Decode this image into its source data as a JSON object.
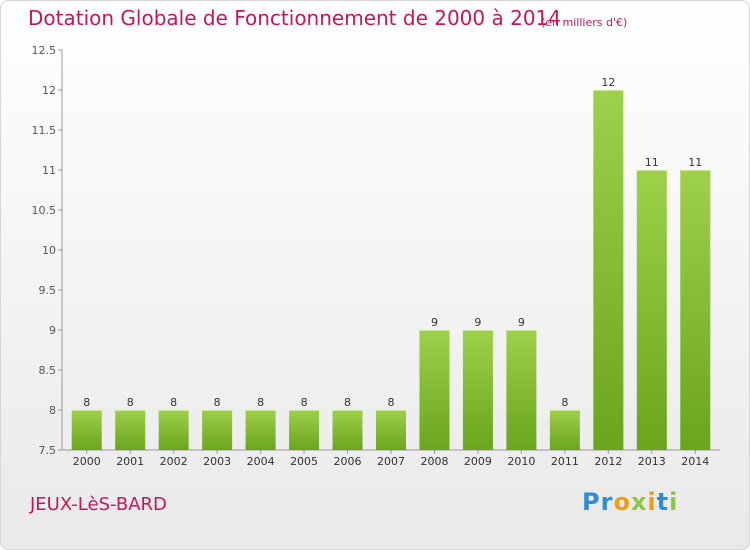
{
  "header": {
    "title": "Dotation Globale de Fonctionnement de 2000 à 2014",
    "subtitle": "(en milliers d'€)"
  },
  "footer": {
    "place": "JEUX-LèS-BARD",
    "logo": "Proxiti"
  },
  "colors": {
    "bar_top": "#9ed14a",
    "bar_bottom": "#6aa51c",
    "title": "#c2185b"
  },
  "chart_data": {
    "type": "bar",
    "title": "Dotation Globale de Fonctionnement de 2000 à 2014",
    "subtitle": "(en milliers d'€)",
    "categories": [
      "2000",
      "2001",
      "2002",
      "2003",
      "2004",
      "2005",
      "2006",
      "2007",
      "2008",
      "2009",
      "2010",
      "2011",
      "2012",
      "2013",
      "2014"
    ],
    "values": [
      8,
      8,
      8,
      8,
      8,
      8,
      8,
      8,
      9,
      9,
      9,
      8,
      12,
      11,
      11
    ],
    "ylim": [
      7.5,
      12.5
    ],
    "yticks": [
      "7.5",
      "8",
      "8.5",
      "9",
      "9.5",
      "10",
      "10.5",
      "11",
      "11.5",
      "12",
      "12.5"
    ],
    "grid": false,
    "legend": "none"
  }
}
